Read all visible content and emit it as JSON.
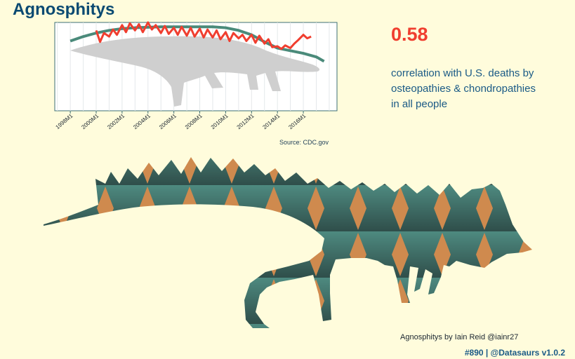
{
  "title": "Agnosphitys",
  "correlation": {
    "value": "0.58",
    "lines": [
      "correlation with U.S. deaths by",
      "osteopathies & chondropathies",
      "in all people"
    ]
  },
  "source": "Source: CDC.gov",
  "credit": "Agnosphitys by Iain Reid @iainr27",
  "footer": "#890 | @Datasaurs v1.0.2",
  "colors": {
    "background": "#fffcdc",
    "title": "#0b4a72",
    "red_series": "#f03e2f",
    "teal_series": "#4a8a7a",
    "silhouette": "#cfcfcf",
    "dino_teal": "#3f7570",
    "dino_orange": "#cf8a4e"
  },
  "chart_data": {
    "type": "line",
    "title": "",
    "xlabel": "",
    "ylabel": "",
    "x_ticks": [
      "1998M1",
      "2000M1",
      "2002M1",
      "2004M1",
      "2006M1",
      "2008M1",
      "2010M1",
      "2012M1",
      "2014M1",
      "2016M1"
    ],
    "xlim": [
      1996.8,
      2018.6
    ],
    "ylim": [
      0,
      1
    ],
    "grid": true,
    "series": [
      {
        "name": "",
        "color": "#4a8a7a",
        "x": [
          1998.0,
          1999.0,
          2000.0,
          2001.0,
          2002.0,
          2003.0,
          2004.0,
          2005.0,
          2006.0,
          2007.0,
          2008.0,
          2009.0,
          2010.0,
          2011.0,
          2012.0,
          2013.0,
          2014.0,
          2015.0,
          2016.0,
          2017.0,
          2017.6
        ],
        "y": [
          0.79,
          0.84,
          0.88,
          0.91,
          0.93,
          0.94,
          0.945,
          0.95,
          0.95,
          0.95,
          0.95,
          0.95,
          0.94,
          0.91,
          0.86,
          0.78,
          0.71,
          0.68,
          0.65,
          0.61,
          0.56
        ]
      },
      {
        "name": "",
        "color": "#f03e2f",
        "x": [
          2000.0,
          2000.3,
          2000.6,
          2001.0,
          2001.3,
          2001.6,
          2002.0,
          2002.3,
          2002.6,
          2003.0,
          2003.3,
          2003.6,
          2004.0,
          2004.3,
          2004.6,
          2005.0,
          2005.3,
          2005.6,
          2006.0,
          2006.3,
          2006.6,
          2007.0,
          2007.3,
          2007.6,
          2008.0,
          2008.3,
          2008.6,
          2009.0,
          2009.3,
          2009.6,
          2010.0,
          2010.3,
          2010.6,
          2011.0,
          2011.3,
          2011.6,
          2012.0,
          2012.3,
          2012.6,
          2013.0,
          2013.3,
          2013.6,
          2014.0,
          2014.3,
          2014.6,
          2015.0,
          2015.3,
          2015.6,
          2016.0,
          2016.3,
          2016.6
        ],
        "y": [
          0.91,
          0.78,
          0.88,
          0.84,
          0.92,
          0.86,
          0.97,
          0.89,
          0.99,
          0.91,
          0.98,
          0.89,
          1.0,
          0.92,
          0.97,
          0.88,
          0.96,
          0.87,
          0.94,
          0.86,
          0.95,
          0.85,
          0.94,
          0.84,
          0.93,
          0.83,
          0.92,
          0.83,
          0.91,
          0.81,
          0.89,
          0.79,
          0.88,
          0.82,
          0.86,
          0.79,
          0.86,
          0.77,
          0.85,
          0.76,
          0.81,
          0.72,
          0.73,
          0.7,
          0.74,
          0.71,
          0.76,
          0.8,
          0.86,
          0.82,
          0.84
        ]
      }
    ]
  }
}
